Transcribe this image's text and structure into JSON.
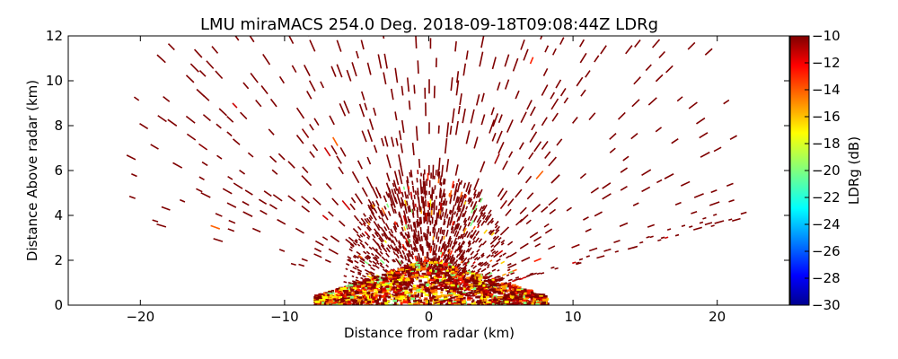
{
  "chart_data": {
    "type": "heatmap",
    "title": "LMU miraMACS 254.0 Deg. 2018-09-18T09:08:44Z  LDRg",
    "xlabel": "Distance from radar (km)",
    "ylabel": "Distance Above radar  (km)",
    "xlim": [
      -25,
      25
    ],
    "ylim": [
      0,
      12
    ],
    "xticks": [
      "−20",
      "−10",
      "0",
      "10",
      "20"
    ],
    "yticks": [
      "0",
      "2",
      "4",
      "6",
      "8",
      "10",
      "12"
    ],
    "scan": {
      "radar_position_km": [
        0,
        0
      ],
      "elevation_range_deg": [
        10,
        170
      ],
      "max_range_km": 22,
      "near_field_dense_range_km": 8,
      "low_right_edge_elevation_deg": 10
    },
    "colorbar": {
      "label": "LDRg (dB)",
      "range": [
        -30,
        -10
      ],
      "ticks": [
        "−10",
        "−12",
        "−14",
        "−16",
        "−18",
        "−20",
        "−22",
        "−24",
        "−26",
        "−28",
        "−30"
      ],
      "colormap": "jet",
      "dominant_value_db": -10
    },
    "grid": false
  }
}
